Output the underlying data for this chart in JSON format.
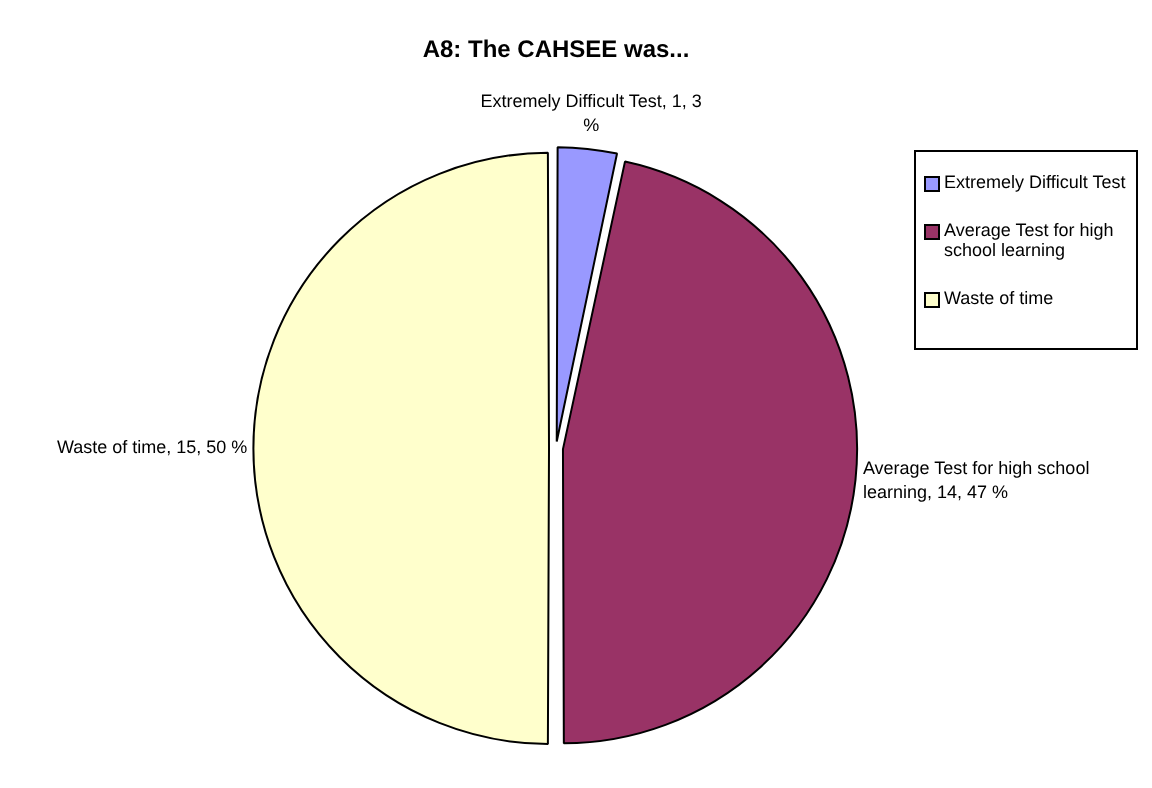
{
  "chart_data": {
    "type": "pie",
    "title": "A8: The CAHSEE was...",
    "categories": [
      "Extremely Difficult Test",
      "Average Test for high school learning",
      "Waste of time"
    ],
    "values": [
      1,
      14,
      15
    ],
    "colors": [
      "#9999ff",
      "#993366",
      "#ffffcc"
    ],
    "value_labels": [
      "Extremely Difficult Test, 1, 3 %",
      "Average Test for high school learning, 14, 47 %",
      "Waste of time, 15, 50 %"
    ],
    "legend": "top right"
  }
}
